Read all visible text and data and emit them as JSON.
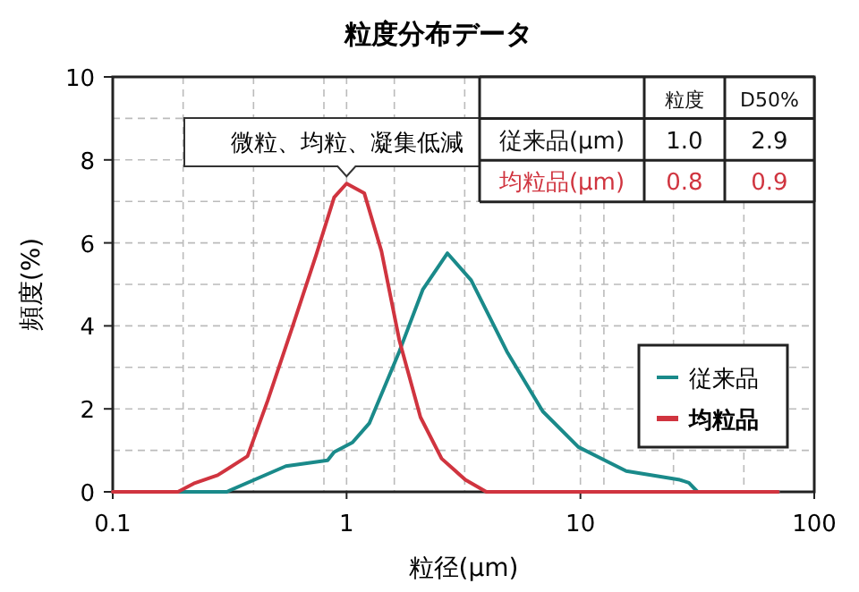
{
  "chart_data": {
    "type": "line",
    "title": "粒度分布データ",
    "xlabel": "粒径(μm)",
    "ylabel": "頻度(%)",
    "log": "x",
    "xlim": [
      0.1,
      100
    ],
    "xticks": [
      0.1,
      {
        "value": 0.2,
        "label": null
      },
      {
        "value": 0.4,
        "label": null
      },
      {
        "value": 0.8,
        "label": null
      },
      1,
      {
        "value": 1.6,
        "label": null
      },
      {
        "value": 3.2,
        "label": null
      },
      {
        "value": 6.3,
        "label": null
      },
      10,
      {
        "value": 12.6,
        "label": null
      },
      {
        "value": 25,
        "label": null
      },
      {
        "value": 50,
        "label": null
      },
      100
    ],
    "ylim": [
      0,
      10
    ],
    "yticks": [
      0,
      {
        "value": 1,
        "label": null
      },
      2,
      {
        "value": 3,
        "label": null
      },
      4,
      {
        "value": 5,
        "label": null
      },
      6,
      {
        "value": 7,
        "label": null
      },
      8,
      {
        "value": 9,
        "label": null
      },
      10
    ],
    "grid": true,
    "legend": "bottom right",
    "line_style": "solid",
    "series": [
      {
        "name": "従来品",
        "color": "#1a8a8a",
        "x": [
          0.1,
          0.307,
          0.55,
          0.83,
          0.885,
          1.06,
          1.25,
          1.68,
          2.12,
          2.7,
          3.41,
          4.85,
          6.9,
          9.8,
          15.7,
          26.6,
          29.1,
          31.7,
          70
        ],
        "values": [
          0,
          0,
          0.62,
          0.76,
          0.96,
          1.19,
          1.65,
          3.38,
          4.88,
          5.75,
          5.1,
          3.38,
          1.94,
          1.08,
          0.5,
          0.29,
          0.22,
          0,
          0
        ]
      },
      {
        "name": "均粒品",
        "color": "#d0343f",
        "x": [
          0.1,
          0.19,
          0.222,
          0.281,
          0.377,
          0.46,
          0.585,
          0.74,
          0.885,
          1.0,
          1.19,
          1.41,
          1.68,
          2.07,
          2.55,
          3.22,
          3.96,
          70
        ],
        "values": [
          0,
          0,
          0.2,
          0.4,
          0.86,
          2.2,
          3.95,
          5.7,
          7.1,
          7.43,
          7.2,
          5.8,
          3.66,
          1.8,
          0.8,
          0.29,
          0,
          0
        ]
      }
    ],
    "annotations": [
      {
        "text": "微粒、均粒、凝集低減",
        "x": 1.0,
        "y": 7.43
      },
      "粒度",
      "D50%",
      "従来品(μm)",
      "1.0",
      "2.9",
      "均粒品(μm)",
      "0.8",
      "0.9"
    ]
  }
}
